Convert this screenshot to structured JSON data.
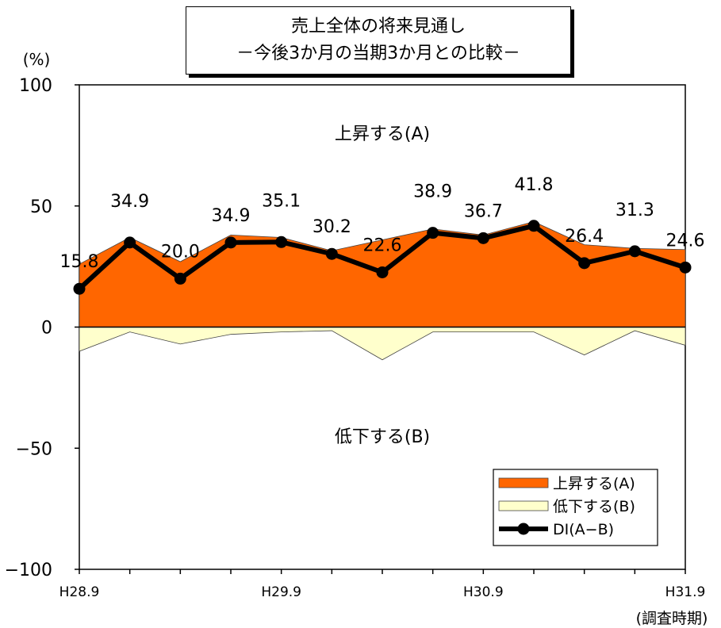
{
  "chart_data": {
    "type": "area",
    "title": "売上全体の将来見通し",
    "subtitle": "－今後3か月の当期3か月との比較－",
    "ylabel": "(%)",
    "xlabel": "(調査時期)",
    "ylim": [
      -100,
      100
    ],
    "yticks": [
      100,
      50,
      0,
      -50,
      -100
    ],
    "ytick_labels": [
      "100",
      "50",
      "0",
      "−50",
      "−100"
    ],
    "x_periods": 13,
    "x_tick_labels": [
      {
        "index": 0,
        "label": "H28.9"
      },
      {
        "index": 4,
        "label": "H29.9"
      },
      {
        "index": 8,
        "label": "H30.9"
      },
      {
        "index": 12,
        "label": "H31.9"
      }
    ],
    "series": [
      {
        "name": "上昇する(A)",
        "color": "#ff6600",
        "values": [
          26.0,
          37.0,
          27.0,
          38.0,
          37.0,
          31.5,
          36.0,
          40.5,
          38.0,
          43.5,
          34.0,
          32.5,
          32.0
        ]
      },
      {
        "name": "低下する(B)",
        "color": "#ffffcc",
        "values": [
          -10.0,
          -2.0,
          -7.0,
          -3.0,
          -2.0,
          -1.5,
          -13.5,
          -2.0,
          -2.0,
          -2.0,
          -11.5,
          -1.5,
          -7.5
        ]
      },
      {
        "name": "DI(A−B)",
        "color": "#000000",
        "values": [
          15.8,
          34.9,
          20.0,
          34.9,
          35.1,
          30.2,
          22.6,
          38.9,
          36.7,
          41.8,
          26.4,
          31.3,
          24.6
        ],
        "data_labels": [
          "15.8",
          "34.9",
          "20.0",
          "34.9",
          "35.1",
          "30.2",
          "22.6",
          "38.9",
          "36.7",
          "41.8",
          "26.4",
          "31.3",
          "24.6"
        ]
      }
    ],
    "annotations": [
      {
        "text": "上昇する(A)",
        "y": 80
      },
      {
        "text": "低下する(B)",
        "y": -45
      }
    ],
    "legend": {
      "position": "bottom-right",
      "items": [
        "上昇する(A)",
        "低下する(B)",
        "DI(A−B)"
      ]
    }
  }
}
